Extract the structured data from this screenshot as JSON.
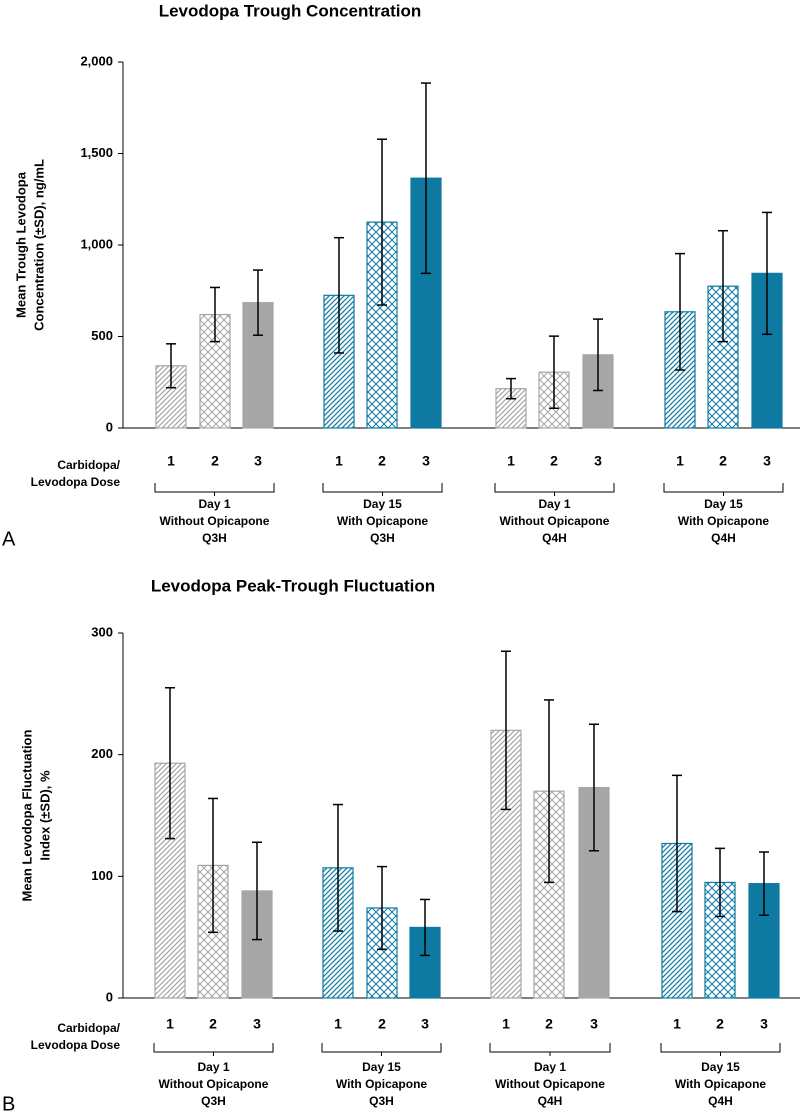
{
  "chart_data": [
    {
      "type": "bar",
      "panel_label": "A",
      "title": "Levodopa Trough Concentration",
      "ylabel": [
        "Mean Trough Levodopa",
        "Concentration (±SD), ng/mL"
      ],
      "xlabel": [
        "Carbidopa/",
        "Levodopa Dose"
      ],
      "ylim": [
        0,
        2000
      ],
      "yticks": [
        0,
        500,
        {
          "value": 1000,
          "label": "1,000"
        },
        {
          "value": 1500,
          "label": "1,500"
        },
        {
          "value": 2000,
          "label": "2,000"
        }
      ],
      "patterns": [
        "diagonal",
        "cross",
        "solid"
      ],
      "groups": [
        {
          "label": [
            "Day 1",
            "Without Opicapone",
            "Q3H"
          ],
          "color": "#a6a6a6",
          "categories": [
            "1",
            "2",
            "3"
          ],
          "values": [
            340,
            620,
            685
          ],
          "errors": [
            120,
            148,
            178
          ]
        },
        {
          "label": [
            "Day 15",
            "With Opicapone",
            "Q3H"
          ],
          "color": "#0e7aa2",
          "categories": [
            "1",
            "2",
            "3"
          ],
          "values": [
            725,
            1125,
            1365
          ],
          "errors": [
            315,
            453,
            520
          ]
        },
        {
          "label": [
            "Day 1",
            "Without Opicapone",
            "Q4H"
          ],
          "color": "#a6a6a6",
          "categories": [
            "1",
            "2",
            "3"
          ],
          "values": [
            215,
            305,
            400
          ],
          "errors": [
            55,
            197,
            195
          ]
        },
        {
          "label": [
            "Day 15",
            "With Opicapone",
            "Q4H"
          ],
          "color": "#0e7aa2",
          "categories": [
            "1",
            "2",
            "3"
          ],
          "values": [
            635,
            775,
            845
          ],
          "errors": [
            318,
            303,
            333
          ]
        }
      ]
    },
    {
      "type": "bar",
      "panel_label": "B",
      "title": "Levodopa Peak-Trough Fluctuation",
      "ylabel": [
        "Mean Levodopa Fluctuation",
        "Index (±SD), %"
      ],
      "xlabel": [
        "Carbidopa/",
        "Levodopa Dose"
      ],
      "ylim": [
        0,
        300
      ],
      "yticks": [
        0,
        100,
        200,
        300
      ],
      "patterns": [
        "diagonal",
        "cross",
        "solid"
      ],
      "groups": [
        {
          "label": [
            "Day 1",
            "Without Opicapone",
            "Q3H"
          ],
          "color": "#a6a6a6",
          "categories": [
            "1",
            "2",
            "3"
          ],
          "values": [
            193,
            109,
            88
          ],
          "errors": [
            62,
            55,
            40
          ]
        },
        {
          "label": [
            "Day 15",
            "With Opicapone",
            "Q3H"
          ],
          "color": "#0e7aa2",
          "categories": [
            "1",
            "2",
            "3"
          ],
          "values": [
            107,
            74,
            58
          ],
          "errors": [
            52,
            34,
            23
          ]
        },
        {
          "label": [
            "Day 1",
            "Without Opicapone",
            "Q4H"
          ],
          "color": "#a6a6a6",
          "categories": [
            "1",
            "2",
            "3"
          ],
          "values": [
            220,
            170,
            173
          ],
          "errors": [
            65,
            75,
            52
          ]
        },
        {
          "label": [
            "Day 15",
            "With Opicapone",
            "Q4H"
          ],
          "color": "#0e7aa2",
          "categories": [
            "1",
            "2",
            "3"
          ],
          "values": [
            127,
            95,
            94
          ],
          "errors": [
            56,
            28,
            26
          ]
        }
      ]
    }
  ]
}
